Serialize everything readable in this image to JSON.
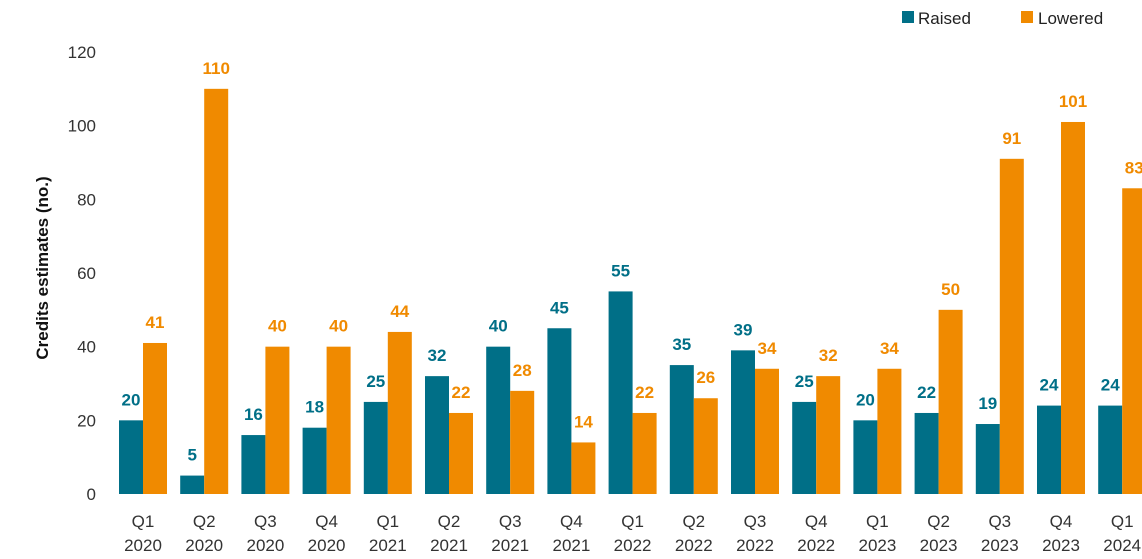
{
  "chart_data": {
    "type": "bar",
    "categories": [
      [
        "Q1",
        "2020"
      ],
      [
        "Q2",
        "2020"
      ],
      [
        "Q3",
        "2020"
      ],
      [
        "Q4",
        "2020"
      ],
      [
        "Q1",
        "2021"
      ],
      [
        "Q2",
        "2021"
      ],
      [
        "Q3",
        "2021"
      ],
      [
        "Q4",
        "2021"
      ],
      [
        "Q1",
        "2022"
      ],
      [
        "Q2",
        "2022"
      ],
      [
        "Q3",
        "2022"
      ],
      [
        "Q4",
        "2022"
      ],
      [
        "Q1",
        "2023"
      ],
      [
        "Q2",
        "2023"
      ],
      [
        "Q3",
        "2023"
      ],
      [
        "Q4",
        "2023"
      ],
      [
        "Q1",
        "2024"
      ]
    ],
    "series": [
      {
        "name": "Raised",
        "color": "#006f87",
        "values": [
          20,
          5,
          16,
          18,
          25,
          32,
          40,
          45,
          55,
          35,
          39,
          25,
          20,
          22,
          19,
          24,
          24
        ]
      },
      {
        "name": "Lowered",
        "color": "#f08a00",
        "values": [
          41,
          110,
          40,
          40,
          44,
          22,
          28,
          14,
          22,
          26,
          34,
          32,
          34,
          50,
          91,
          101,
          83
        ]
      }
    ],
    "title": "",
    "xlabel": "",
    "ylabel": "Credits estimates (no.)",
    "ylim": [
      0,
      120
    ],
    "yticks": [
      0,
      20,
      40,
      60,
      80,
      100,
      120
    ],
    "grid": false,
    "legend_position": "top-right"
  }
}
